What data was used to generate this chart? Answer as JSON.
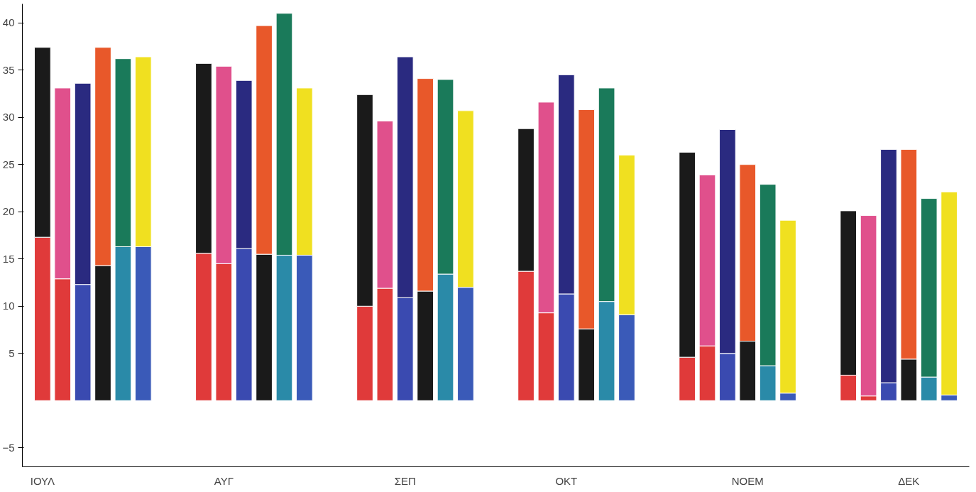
{
  "chart_data": {
    "type": "bar",
    "stacked": true,
    "categories": [
      "ΙΟΥΛ",
      null,
      null,
      null,
      null,
      null,
      null,
      null,
      null,
      "ΑΥΓ",
      null,
      null,
      null,
      null,
      null,
      null,
      null,
      null,
      "ΣΕΠ",
      null,
      null,
      null,
      null,
      null,
      null,
      null,
      "ΟΚΤ",
      null,
      null,
      null,
      null,
      null,
      null,
      null,
      null,
      "ΝΟΕΜ",
      null,
      null,
      null,
      null,
      null,
      null,
      null,
      "ΔΕΚ",
      null,
      null
    ],
    "ylim": [
      -7,
      42
    ],
    "yticks": [
      -5,
      5,
      10,
      15,
      20,
      25,
      30,
      35,
      40
    ],
    "grid": false,
    "series": [
      {
        "values": [
          17.3,
          12.9,
          12.3,
          14.3,
          16.3,
          16.3,
          null,
          null,
          15.6,
          14.5,
          16.1,
          15.5,
          15.4,
          15.4,
          null,
          null,
          10,
          11.9,
          10.9,
          11.6,
          13.4,
          12,
          null,
          null,
          13.7,
          9.3,
          11.3,
          7.6,
          10.5,
          9.1,
          null,
          null,
          4.6,
          5.8,
          5.0,
          6.3,
          3.7,
          0.8,
          null,
          null,
          2.7,
          0.5,
          1.9,
          4.4,
          2.5,
          0.6
        ],
        "colors": [
          "#e03a3a",
          "#e03a3a",
          "#3a4ab0",
          "#1a1a1a",
          "#2a8aa8",
          "#3a5ab8",
          null,
          null,
          "#e03a3a",
          "#e03a3a",
          "#3a4ab0",
          "#1a1a1a",
          "#2a8aa8",
          "#3a5ab8",
          null,
          null,
          "#e03a3a",
          "#e03a3a",
          "#3a4ab0",
          "#1a1a1a",
          "#2a8aa8",
          "#3a5ab8",
          null,
          null,
          "#e03a3a",
          "#e03a3a",
          "#3a4ab0",
          "#1a1a1a",
          "#2a8aa8",
          "#3a5ab8",
          null,
          null,
          "#e03a3a",
          "#e03a3a",
          "#3a4ab0",
          "#1a1a1a",
          "#2a8aa8",
          "#3a5ab8",
          null,
          null,
          "#e03a3a",
          "#e03a3a",
          "#3a4ab0",
          "#1a1a1a",
          "#2a8aa8",
          "#3a5ab8"
        ]
      },
      {
        "values": [
          20.1,
          20.2,
          21.3,
          23.1,
          19.9,
          20.1,
          null,
          null,
          20.1,
          20.9,
          17.8,
          24.2,
          25.6,
          17.7,
          null,
          null,
          22.4,
          17.7,
          25.5,
          22.5,
          20.6,
          18.7,
          null,
          null,
          15.1,
          22.3,
          23.2,
          23.2,
          22.6,
          16.9,
          null,
          null,
          21.7,
          18.1,
          23.7,
          18.7,
          19.2,
          18.3,
          null,
          null,
          17.4,
          19.1,
          24.7,
          22.2,
          18.9,
          21.5
        ],
        "colors": [
          "#1a1a1a",
          "#e0508c",
          "#2a2a80",
          "#e8582a",
          "#1a7a5a",
          "#f0e020",
          null,
          null,
          "#1a1a1a",
          "#e0508c",
          "#2a2a80",
          "#e8582a",
          "#1a7a5a",
          "#f0e020",
          null,
          null,
          "#1a1a1a",
          "#e0508c",
          "#2a2a80",
          "#e8582a",
          "#1a7a5a",
          "#f0e020",
          null,
          null,
          "#1a1a1a",
          "#e0508c",
          "#2a2a80",
          "#e8582a",
          "#1a7a5a",
          "#f0e020",
          null,
          null,
          "#1a1a1a",
          "#e0508c",
          "#2a2a80",
          "#e8582a",
          "#1a7a5a",
          "#f0e020",
          null,
          null,
          "#1a1a1a",
          "#e0508c",
          "#2a2a80",
          "#e8582a",
          "#1a7a5a",
          "#f0e020"
        ]
      }
    ]
  }
}
